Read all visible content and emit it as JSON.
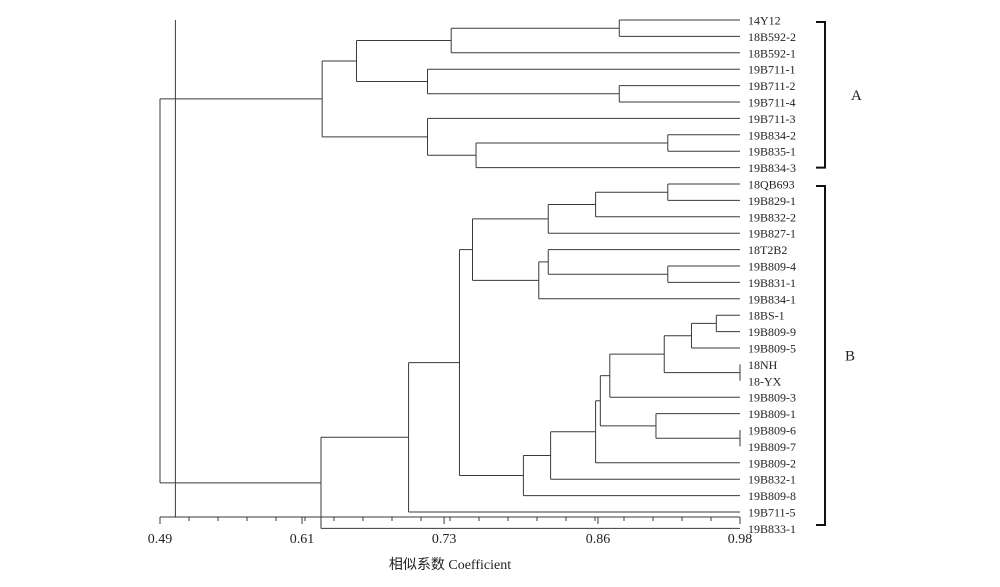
{
  "chart_data": {
    "type": "dendrogram",
    "xlabel": "相似系数 Coefficient",
    "xlim": [
      0.49,
      0.98
    ],
    "xticks": [
      "0.49",
      "0.61",
      "0.73",
      "0.86",
      "0.98"
    ],
    "xtick_values": [
      0.49,
      0.61,
      0.73,
      0.86,
      0.98
    ],
    "minor_tick_step": 0.0245,
    "cutoff_line": 0.503,
    "groups": [
      {
        "label": "A",
        "from": "14Y12",
        "to": "19B834-3"
      },
      {
        "label": "B",
        "from": "18QB693",
        "to": "19B711-5"
      }
    ],
    "tree": {
      "h": 0.49,
      "c": [
        {
          "h": 0.627,
          "c": [
            {
              "h": 0.656,
              "c": [
                {
                  "h": 0.736,
                  "c": [
                    {
                      "h": 0.878,
                      "c": [
                        "14Y12",
                        "18B592-2"
                      ]
                    },
                    "18B592-1"
                  ]
                },
                {
                  "h": 0.716,
                  "c": [
                    "19B711-1",
                    {
                      "h": 0.878,
                      "c": [
                        "19B711-2",
                        "19B711-4"
                      ]
                    }
                  ]
                }
              ]
            },
            {
              "h": 0.716,
              "c": [
                "19B711-3",
                {
                  "h": 0.757,
                  "c": [
                    {
                      "h": 0.919,
                      "c": [
                        "19B834-2",
                        "19B835-1"
                      ]
                    },
                    "19B834-3"
                  ]
                }
              ]
            }
          ]
        },
        {
          "h": 0.626,
          "c": [
            {
              "h": 0.7,
              "c": [
                {
                  "h": 0.743,
                  "c": [
                    {
                      "h": 0.754,
                      "c": [
                        {
                          "h": 0.818,
                          "c": [
                            {
                              "h": 0.858,
                              "c": [
                                {
                                  "h": 0.919,
                                  "c": [
                                    "18QB693",
                                    "19B829-1"
                                  ]
                                },
                                "19B832-2"
                              ]
                            },
                            "19B827-1"
                          ]
                        },
                        {
                          "h": 0.81,
                          "c": [
                            {
                              "h": 0.818,
                              "c": [
                                "18T2B2",
                                {
                                  "h": 0.919,
                                  "c": [
                                    "19B809-4",
                                    "19B831-1"
                                  ]
                                }
                              ]
                            },
                            "19B834-1"
                          ]
                        }
                      ]
                    },
                    {
                      "h": 0.797,
                      "c": [
                        {
                          "h": 0.82,
                          "c": [
                            {
                              "h": 0.858,
                              "c": [
                                {
                                  "h": 0.862,
                                  "c": [
                                    {
                                      "h": 0.87,
                                      "c": [
                                        {
                                          "h": 0.916,
                                          "c": [
                                            {
                                              "h": 0.939,
                                              "c": [
                                                {
                                                  "h": 0.96,
                                                  "c": [
                                                    "18BS-1",
                                                    "19B809-9"
                                                  ]
                                                },
                                                "19B809-5"
                                              ]
                                            },
                                            {
                                              "h": 0.98,
                                              "c": [
                                                "18NH",
                                                "18-YX"
                                              ]
                                            }
                                          ]
                                        },
                                        "19B809-3"
                                      ]
                                    },
                                    {
                                      "h": 0.909,
                                      "c": [
                                        "19B809-1",
                                        {
                                          "h": 0.98,
                                          "c": [
                                            "19B809-6",
                                            "19B809-7"
                                          ]
                                        }
                                      ]
                                    }
                                  ]
                                },
                                "19B809-2"
                              ]
                            },
                            "19B832-1"
                          ]
                        },
                        "19B809-8"
                      ]
                    }
                  ]
                },
                "19B711-5"
              ]
            },
            "19B833-1"
          ]
        }
      ]
    }
  }
}
